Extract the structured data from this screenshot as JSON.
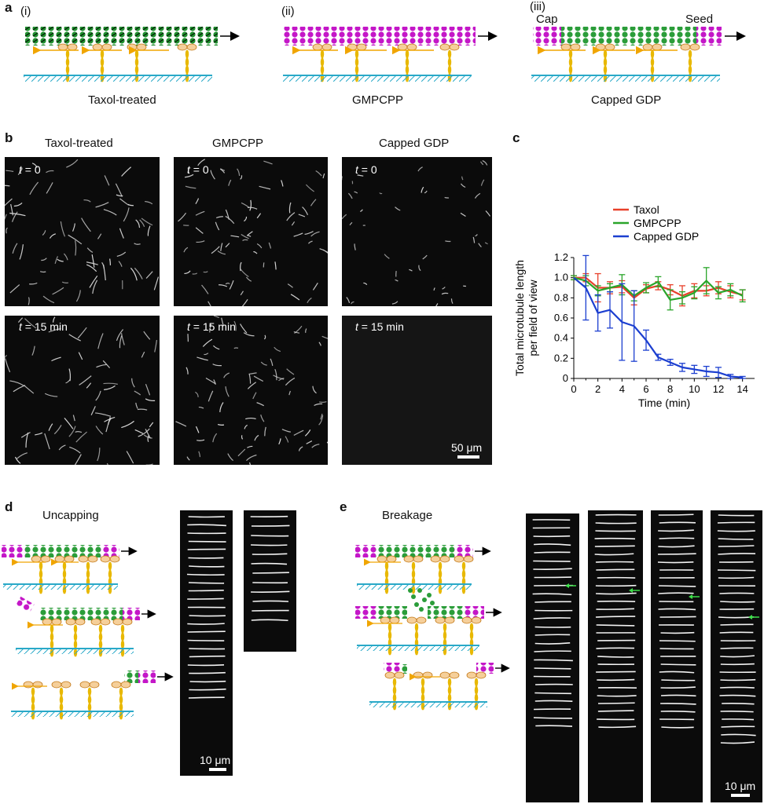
{
  "panel_a": {
    "letter": "a",
    "items": [
      {
        "roman": "(i)",
        "caption": "Taxol-treated"
      },
      {
        "roman": "(ii)",
        "caption": "GMPCPP"
      },
      {
        "roman": "(iii)",
        "caption": "Capped GDP",
        "cap_label": "Cap",
        "seed_label": "Seed"
      }
    ]
  },
  "panel_b": {
    "letter": "b",
    "columns": [
      "Taxol-treated",
      "GMPCPP",
      "Capped GDP"
    ],
    "time_0": "t",
    "time_0_suffix": " = 0",
    "time_15": "t",
    "time_15_suffix": " = 15 min",
    "scale": "50 μm"
  },
  "panel_c": {
    "letter": "c",
    "chart_data": {
      "type": "line",
      "xlabel": "Time (min)",
      "ylabel_line1": "Total microtubule length",
      "ylabel_line2": "per field of view",
      "xlim": [
        0,
        15
      ],
      "ylim": [
        0,
        1.2
      ],
      "x_ticks": [
        "0",
        "2",
        "4",
        "6",
        "8",
        "10",
        "12",
        "14"
      ],
      "y_ticks": [
        "0",
        "0.2",
        "0.4",
        "0.6",
        "0.8",
        "1.0",
        "1.2"
      ],
      "legend_position": "top",
      "x": [
        0,
        1,
        2,
        3,
        4,
        5,
        6,
        7,
        8,
        9,
        10,
        11,
        12,
        13,
        14
      ],
      "series": [
        {
          "name": "Taxol",
          "color": "#e8402a",
          "values": [
            1.0,
            1.0,
            0.9,
            0.9,
            0.91,
            0.8,
            0.89,
            0.92,
            0.88,
            0.82,
            0.87,
            0.87,
            0.9,
            0.86,
            0.83
          ],
          "errors": [
            0.02,
            0.04,
            0.14,
            0.06,
            0.06,
            0.07,
            0.04,
            0.04,
            0.05,
            0.1,
            0.07,
            0.05,
            0.06,
            0.06,
            0.05
          ]
        },
        {
          "name": "GMPCPP",
          "color": "#2aa52a",
          "values": [
            1.0,
            0.97,
            0.87,
            0.9,
            0.93,
            0.82,
            0.9,
            0.96,
            0.78,
            0.8,
            0.85,
            0.97,
            0.85,
            0.88,
            0.82
          ],
          "errors": [
            0.02,
            0.05,
            0.05,
            0.04,
            0.1,
            0.05,
            0.05,
            0.05,
            0.1,
            0.06,
            0.06,
            0.13,
            0.06,
            0.06,
            0.06
          ]
        },
        {
          "name": "Capped GDP",
          "color": "#1c3fd0",
          "values": [
            1.0,
            0.9,
            0.65,
            0.68,
            0.56,
            0.52,
            0.38,
            0.21,
            0.16,
            0.11,
            0.09,
            0.07,
            0.06,
            0.02,
            0.01
          ],
          "errors": [
            0.0,
            0.32,
            0.18,
            0.18,
            0.38,
            0.35,
            0.1,
            0.03,
            0.03,
            0.04,
            0.04,
            0.05,
            0.05,
            0.02,
            0.01
          ]
        }
      ]
    }
  },
  "panel_d": {
    "letter": "d",
    "title": "Uncapping",
    "scale": "10 μm"
  },
  "panel_e": {
    "letter": "e",
    "title": "Breakage",
    "scale": "10 μm"
  }
}
